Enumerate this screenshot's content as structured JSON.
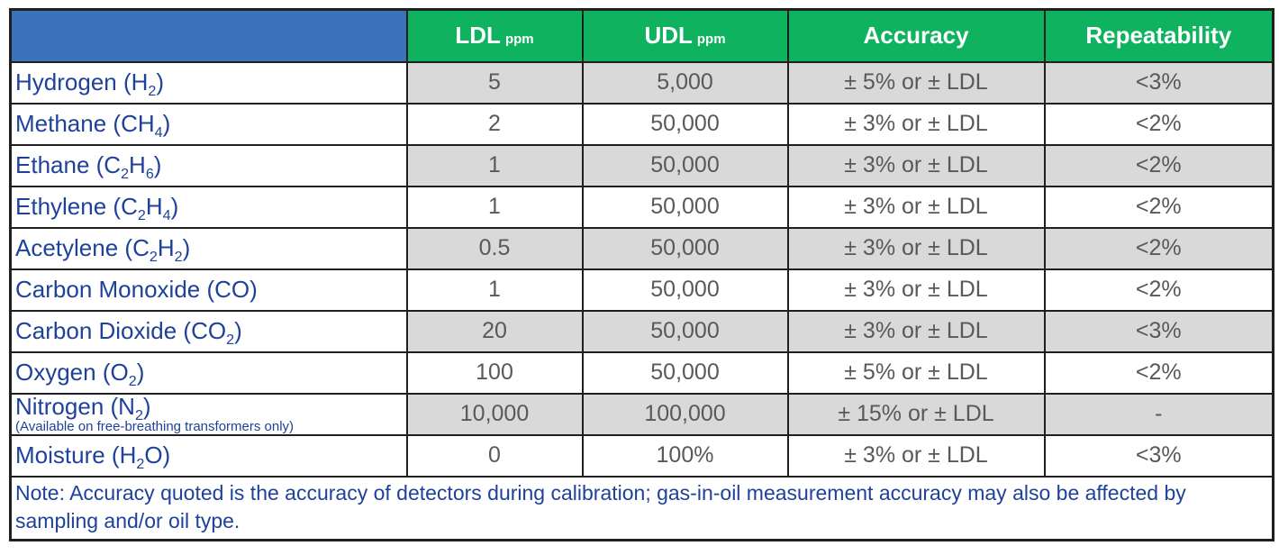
{
  "header": {
    "columns": [
      {
        "label": "",
        "unit": ""
      },
      {
        "label": "LDL",
        "unit": "ppm"
      },
      {
        "label": "UDL",
        "unit": "ppm"
      },
      {
        "label": "Accuracy",
        "unit": ""
      },
      {
        "label": "Repeatability",
        "unit": ""
      }
    ]
  },
  "colors": {
    "header_blue": "#3A73B9",
    "header_green": "#0EB25F",
    "shaded_row": "#D9D9D9",
    "gas_name_text": "#1E4199",
    "value_text": "#595959",
    "border": "#1F1F1F"
  },
  "rows": [
    {
      "name_parts": [
        {
          "text": "Hydrogen (H"
        },
        {
          "text": "2",
          "sub": true
        },
        {
          "text": ")"
        }
      ],
      "shaded": true,
      "ldl": "5",
      "udl": "5,000",
      "accuracy": "± 5% or ± LDL",
      "repeatability": "<3%"
    },
    {
      "name_parts": [
        {
          "text": "Methane (CH"
        },
        {
          "text": "4",
          "sub": true
        },
        {
          "text": ")"
        }
      ],
      "shaded": false,
      "ldl": "2",
      "udl": "50,000",
      "accuracy": "± 3% or ± LDL",
      "repeatability": "<2%"
    },
    {
      "name_parts": [
        {
          "text": "Ethane (C"
        },
        {
          "text": "2",
          "sub": true
        },
        {
          "text": "H"
        },
        {
          "text": "6",
          "sub": true
        },
        {
          "text": ")"
        }
      ],
      "shaded": true,
      "ldl": "1",
      "udl": "50,000",
      "accuracy": "± 3% or ± LDL",
      "repeatability": "<2%"
    },
    {
      "name_parts": [
        {
          "text": "Ethylene (C"
        },
        {
          "text": "2",
          "sub": true
        },
        {
          "text": "H"
        },
        {
          "text": "4",
          "sub": true
        },
        {
          "text": ")"
        }
      ],
      "shaded": false,
      "ldl": "1",
      "udl": "50,000",
      "accuracy": "± 3% or ± LDL",
      "repeatability": "<2%"
    },
    {
      "name_parts": [
        {
          "text": "Acetylene (C"
        },
        {
          "text": "2",
          "sub": true
        },
        {
          "text": "H"
        },
        {
          "text": "2",
          "sub": true
        },
        {
          "text": ")"
        }
      ],
      "shaded": true,
      "ldl": "0.5",
      "udl": "50,000",
      "accuracy": "± 3% or ± LDL",
      "repeatability": "<2%"
    },
    {
      "name_parts": [
        {
          "text": "Carbon Monoxide (CO)"
        }
      ],
      "shaded": false,
      "ldl": "1",
      "udl": "50,000",
      "accuracy": "± 3% or ± LDL",
      "repeatability": "<2%"
    },
    {
      "name_parts": [
        {
          "text": "Carbon Dioxide (CO"
        },
        {
          "text": "2",
          "sub": true
        },
        {
          "text": ")"
        }
      ],
      "shaded": true,
      "ldl": "20",
      "udl": "50,000",
      "accuracy": "± 3% or ± LDL",
      "repeatability": "<3%"
    },
    {
      "name_parts": [
        {
          "text": "Oxygen (O"
        },
        {
          "text": "2",
          "sub": true
        },
        {
          "text": ")"
        }
      ],
      "shaded": false,
      "ldl": "100",
      "udl": "50,000",
      "accuracy": "± 5% or ± LDL",
      "repeatability": "<2%"
    },
    {
      "name_parts": [
        {
          "text": "Nitrogen (N"
        },
        {
          "text": "2",
          "sub": true
        },
        {
          "text": ")"
        }
      ],
      "availability_note": "(Available on free-breathing transformers only)",
      "shaded": true,
      "ldl": "10,000",
      "udl": "100,000",
      "accuracy": "± 15% or ± LDL",
      "repeatability": "-"
    },
    {
      "name_parts": [
        {
          "text": "Moisture (H"
        },
        {
          "text": "2",
          "sub": true
        },
        {
          "text": "O)"
        }
      ],
      "shaded": false,
      "ldl": "0",
      "udl": "100%",
      "accuracy": "± 3% or ± LDL",
      "repeatability": "<3%"
    }
  ],
  "note": "Note: Accuracy quoted is the accuracy of detectors during calibration; gas-in-oil measurement accuracy may also be affected by sampling and/or oil type."
}
